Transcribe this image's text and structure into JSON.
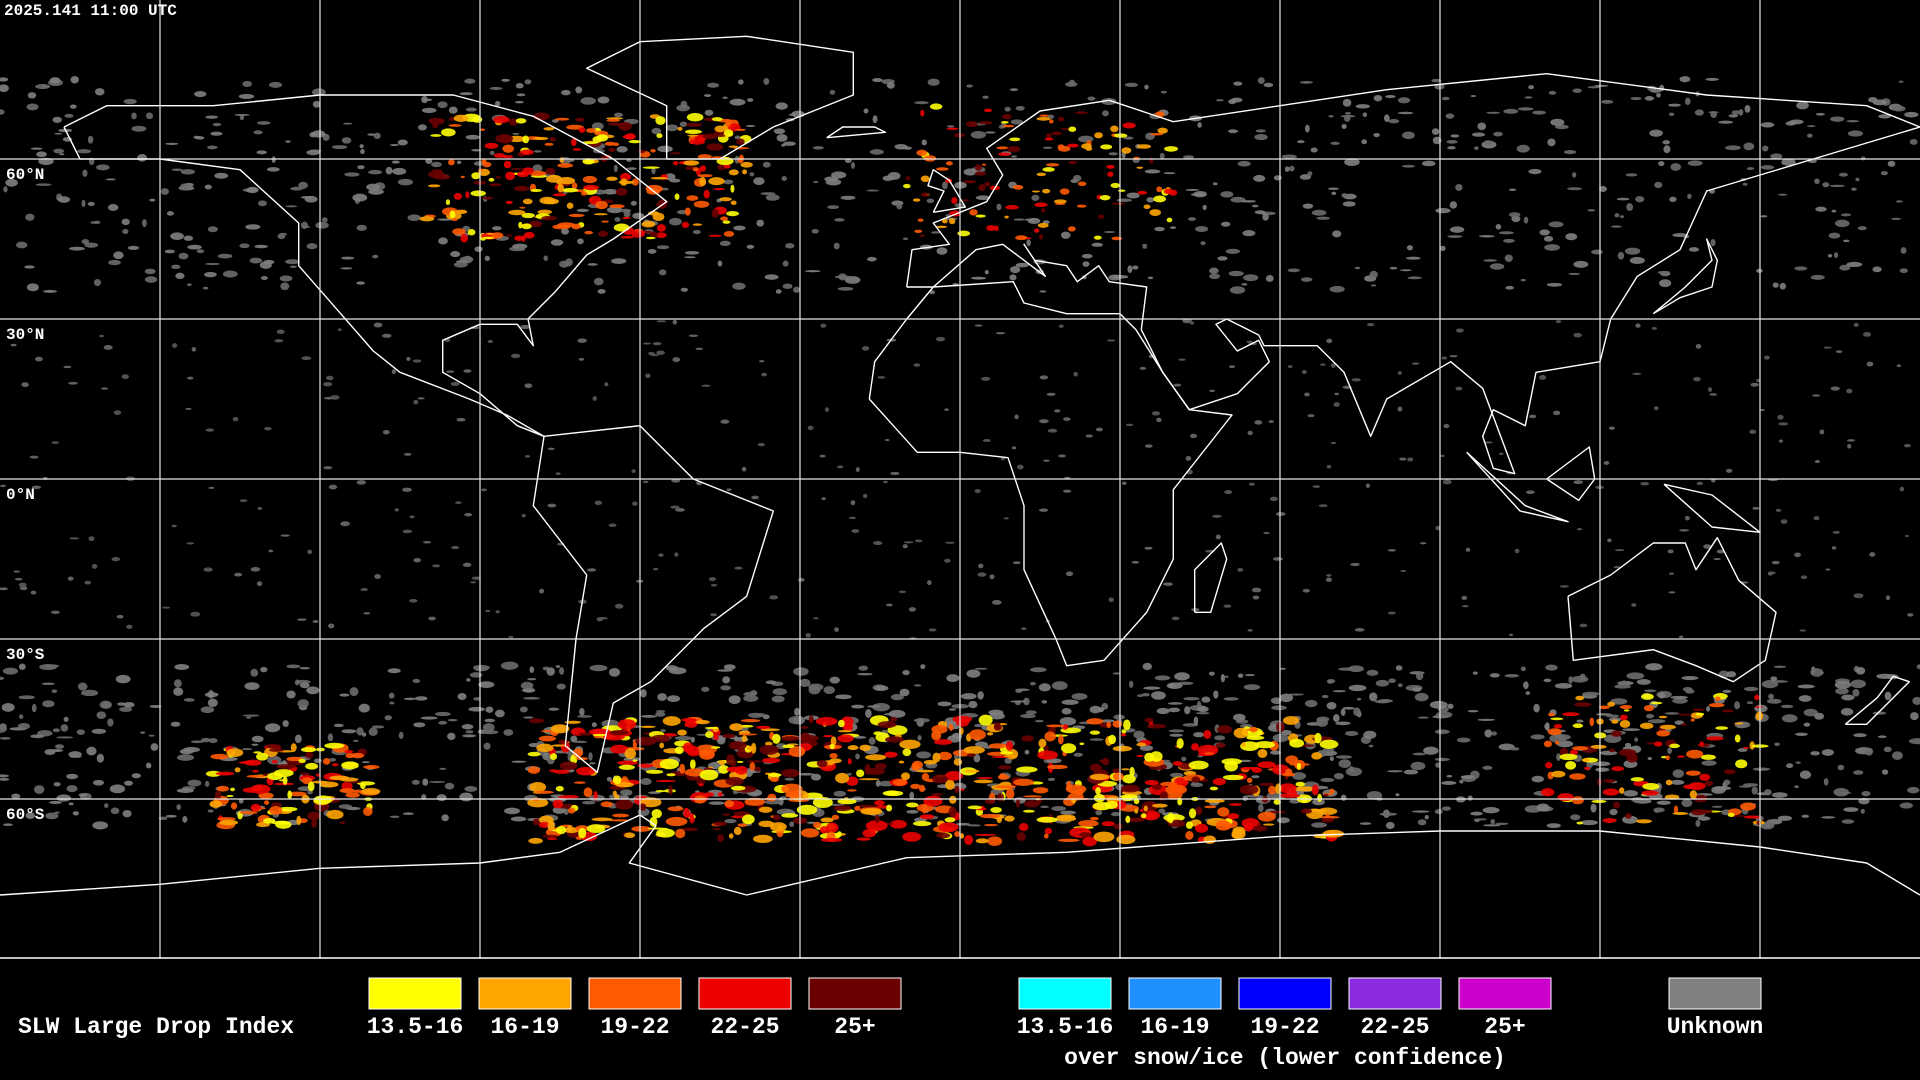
{
  "header": {
    "timestamp": "2025.141 11:00 UTC"
  },
  "latitude_labels": [
    "60°N",
    "30°N",
    "0°N",
    "30°S",
    "60°S"
  ],
  "legend": {
    "title": "SLW Large Drop Index",
    "groups": [
      {
        "items": [
          {
            "label": "13.5-16",
            "color": "#ffff00"
          },
          {
            "label": "16-19",
            "color": "#ffa500"
          },
          {
            "label": "19-22",
            "color": "#ff5a00"
          },
          {
            "label": "22-25",
            "color": "#ee0000"
          },
          {
            "label": "25+",
            "color": "#6a0000"
          }
        ]
      },
      {
        "items": [
          {
            "label": "13.5-16",
            "color": "#00ffff"
          },
          {
            "label": "16-19",
            "color": "#1e90ff"
          },
          {
            "label": "19-22",
            "color": "#0000ff"
          },
          {
            "label": "22-25",
            "color": "#8a2be2"
          },
          {
            "label": "25+",
            "color": "#cc00cc"
          }
        ],
        "caption": "over snow/ice (lower confidence)"
      },
      {
        "items": [
          {
            "label": "Unknown",
            "color": "#808080"
          }
        ]
      }
    ]
  }
}
